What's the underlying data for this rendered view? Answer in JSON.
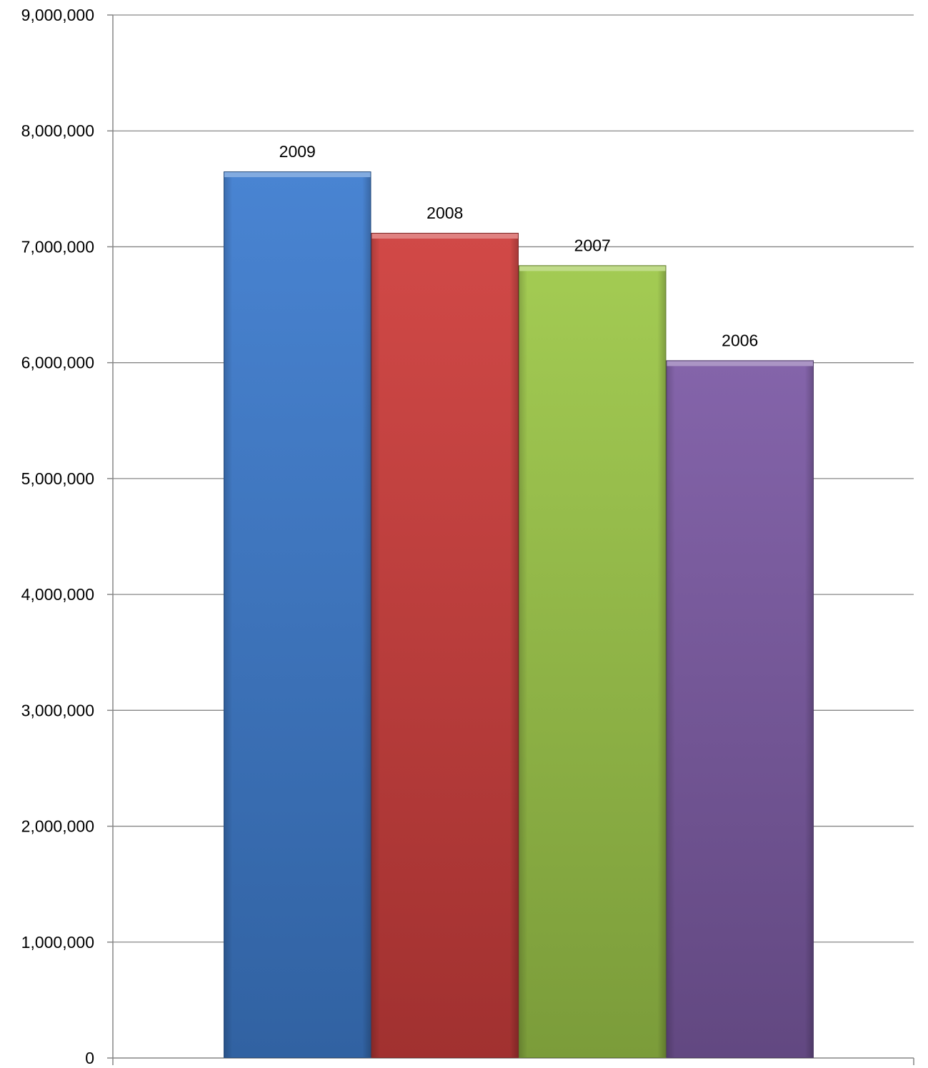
{
  "chart_data": {
    "type": "bar",
    "title": "",
    "xlabel": "",
    "ylabel": "",
    "categories": [
      "2009",
      "2008",
      "2007",
      "2006"
    ],
    "values": [
      7650000,
      7120000,
      6840000,
      6020000
    ],
    "data_labels": [
      "2009",
      "2008",
      "2007",
      "2006"
    ],
    "ylim": [
      0,
      9000000
    ],
    "y_ticks": [
      0,
      1000000,
      2000000,
      3000000,
      4000000,
      5000000,
      6000000,
      7000000,
      8000000,
      9000000
    ],
    "y_tick_labels": [
      "0",
      "1,000,000",
      "2,000,000",
      "3,000,000",
      "4,000,000",
      "5,000,000",
      "6,000,000",
      "7,000,000",
      "8,000,000",
      "9,000,000"
    ],
    "grid": true,
    "legend": "none",
    "bar_colors": [
      "#3f7ed0",
      "#cf3f3d",
      "#9ec84a",
      "#7d5ca6"
    ]
  }
}
